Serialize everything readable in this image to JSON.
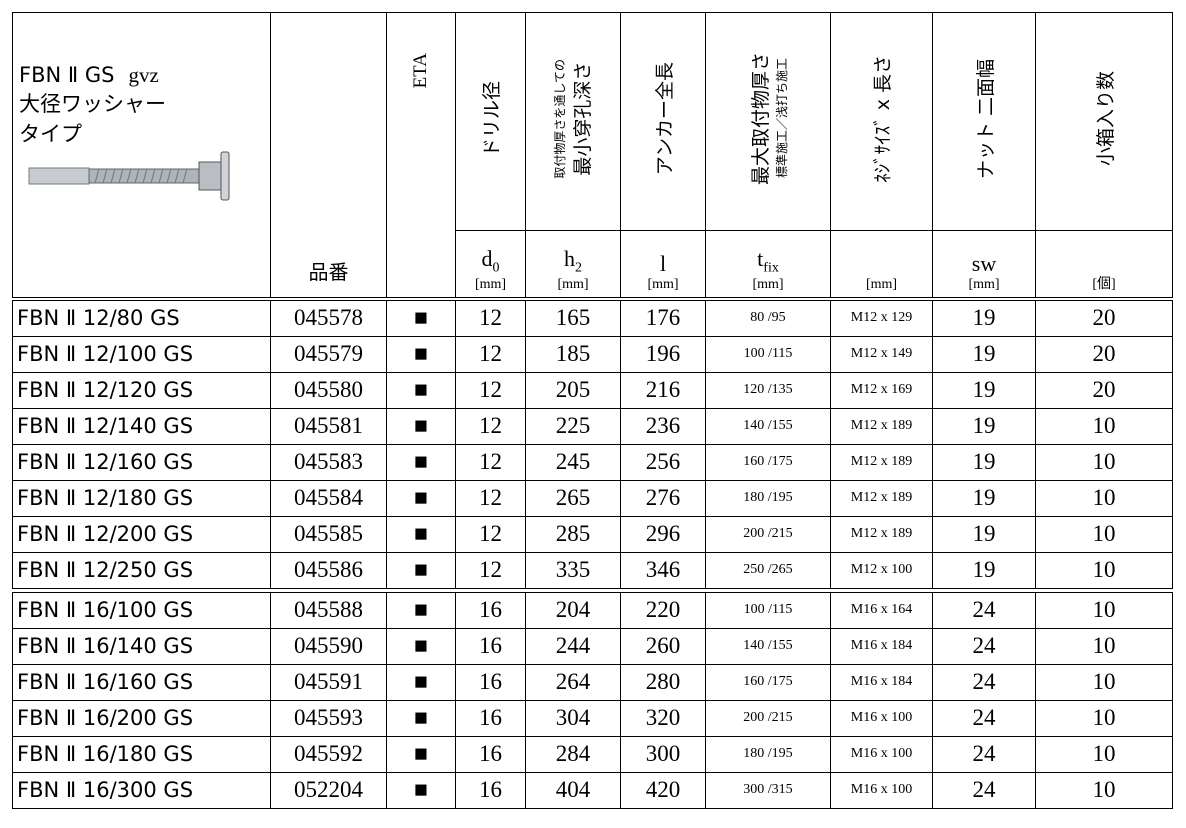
{
  "header": {
    "title": "FBN Ⅱ GS",
    "title_suffix": "gvz",
    "subtitle": [
      "大径ワッシャー",
      "タイプ"
    ],
    "code": "品番",
    "eta": "ETA",
    "columns": [
      {
        "label": [
          "ドリル径"
        ],
        "symbol": "d",
        "sub": "0",
        "unit": "[mm]"
      },
      {
        "label": [
          "取付物厚さを通しての",
          "最小穿孔深さ"
        ],
        "symbol": "h",
        "sub": "2",
        "unit": "[mm]"
      },
      {
        "label": [
          "アンカー全長"
        ],
        "symbol": "l",
        "unit": "[mm]"
      },
      {
        "label": [
          "最大取付物厚さ",
          "標準施工／浅打ち施工"
        ],
        "symbol": "t",
        "sub": "fix",
        "unit": "[mm]"
      },
      {
        "label": [
          "ﾈｼﾞｻｲｽﾞ x 長さ"
        ],
        "unit": "[mm]"
      },
      {
        "label": [
          "ナット 二面幅"
        ],
        "symbol": "sw",
        "unit": "[mm]"
      },
      {
        "label": [
          "小箱入り数"
        ],
        "unit": "[個]"
      }
    ]
  },
  "groups": [
    [
      [
        "FBN Ⅱ 12/80 GS",
        "045578",
        "■",
        12,
        165,
        176,
        "80 /95",
        "M12 x 129",
        19,
        20
      ],
      [
        "FBN Ⅱ 12/100 GS",
        "045579",
        "■",
        12,
        185,
        196,
        "100 /115",
        "M12 x 149",
        19,
        20
      ],
      [
        "FBN Ⅱ 12/120 GS",
        "045580",
        "■",
        12,
        205,
        216,
        "120 /135",
        "M12 x 169",
        19,
        20
      ],
      [
        "FBN Ⅱ 12/140 GS",
        "045581",
        "■",
        12,
        225,
        236,
        "140 /155",
        "M12 x 189",
        19,
        10
      ],
      [
        "FBN Ⅱ 12/160 GS",
        "045583",
        "■",
        12,
        245,
        256,
        "160 /175",
        "M12 x 189",
        19,
        10
      ],
      [
        "FBN Ⅱ 12/180 GS",
        "045584",
        "■",
        12,
        265,
        276,
        "180 /195",
        "M12 x 189",
        19,
        10
      ],
      [
        "FBN Ⅱ 12/200 GS",
        "045585",
        "■",
        12,
        285,
        296,
        "200 /215",
        "M12 x 189",
        19,
        10
      ],
      [
        "FBN Ⅱ 12/250 GS",
        "045586",
        "■",
        12,
        335,
        346,
        "250 /265",
        "M12 x 100",
        19,
        10
      ]
    ],
    [
      [
        "FBN Ⅱ 16/100 GS",
        "045588",
        "■",
        16,
        204,
        220,
        "100 /115",
        "M16 x 164",
        24,
        10
      ],
      [
        "FBN Ⅱ 16/140 GS",
        "045590",
        "■",
        16,
        244,
        260,
        "140 /155",
        "M16 x 184",
        24,
        10
      ],
      [
        "FBN Ⅱ 16/160 GS",
        "045591",
        "■",
        16,
        264,
        280,
        "160 /175",
        "M16 x 184",
        24,
        10
      ],
      [
        "FBN Ⅱ 16/200 GS",
        "045593",
        "■",
        16,
        304,
        320,
        "200 /215",
        "M16 x 100",
        24,
        10
      ],
      [
        "FBN Ⅱ 16/180 GS",
        "045592",
        "■",
        16,
        284,
        300,
        "180 /195",
        "M16 x 100",
        24,
        10
      ],
      [
        "FBN Ⅱ 16/300 GS",
        "052204",
        "■",
        16,
        404,
        420,
        "300 /315",
        "M16 x 100",
        24,
        10
      ]
    ]
  ]
}
